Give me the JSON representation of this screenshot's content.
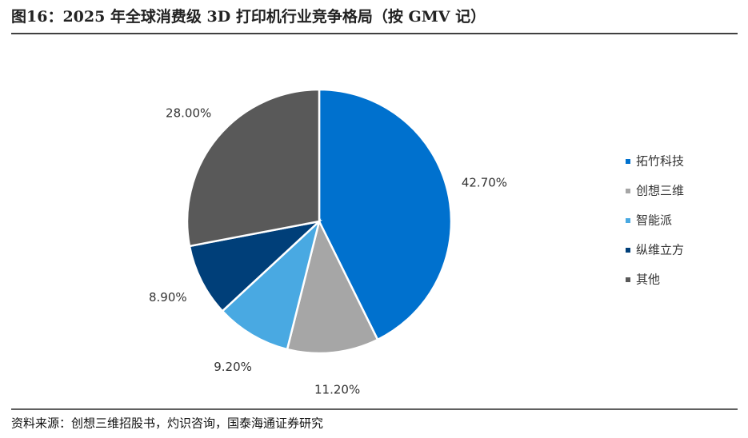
{
  "chart_data": {
    "type": "pie",
    "title": "图16：2025 年全球消费级 3D 打印机行业竞争格局（按 GMV 记）",
    "categories": [
      "拓竹科技",
      "创想三维",
      "智能派",
      "纵维立方",
      "其他"
    ],
    "values": [
      42.7,
      11.2,
      9.2,
      8.9,
      28.0
    ],
    "value_labels": [
      "42.70%",
      "11.20%",
      "9.20%",
      "8.90%",
      "28.00%"
    ],
    "colors": [
      "#0071ce",
      "#a6a6a6",
      "#49a9e2",
      "#003f79",
      "#595959"
    ],
    "legend": "right",
    "source": "资料来源：创想三维招股书，灼识咨询，国泰海通证券研究"
  }
}
